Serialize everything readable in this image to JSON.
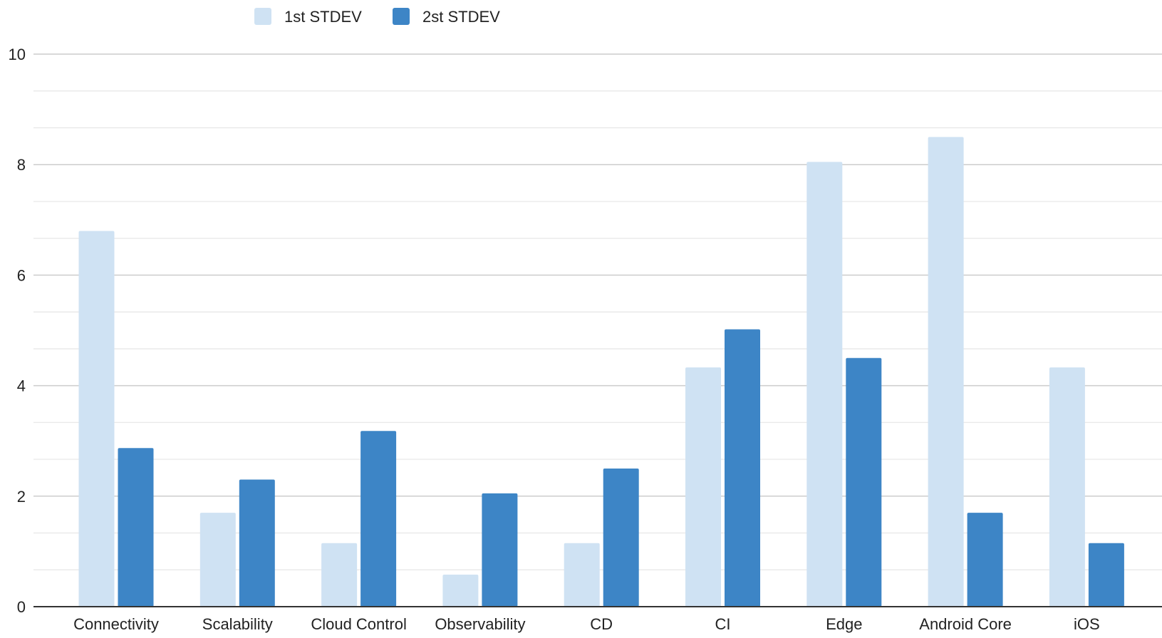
{
  "chart_data": {
    "type": "bar",
    "title": "",
    "xlabel": "",
    "ylabel": "",
    "ylim": [
      0,
      10
    ],
    "yticks": [
      0,
      2,
      4,
      6,
      8,
      10
    ],
    "grid": true,
    "minor_grid": true,
    "legend_position": "top-left",
    "categories": [
      "Connectivity",
      "Scalability",
      "Cloud Control",
      "Observability",
      "CD",
      "CI",
      "Edge",
      "Android Core",
      "iOS"
    ],
    "series": [
      {
        "name": "1st STDEV",
        "color": "#cfe2f3",
        "values": [
          6.8,
          1.7,
          1.15,
          0.58,
          1.15,
          4.33,
          8.05,
          8.5,
          4.33
        ]
      },
      {
        "name": "2st STDEV",
        "color": "#3d85c6",
        "values": [
          2.87,
          2.3,
          3.18,
          2.05,
          2.5,
          5.02,
          4.5,
          1.7,
          1.15
        ]
      }
    ]
  }
}
